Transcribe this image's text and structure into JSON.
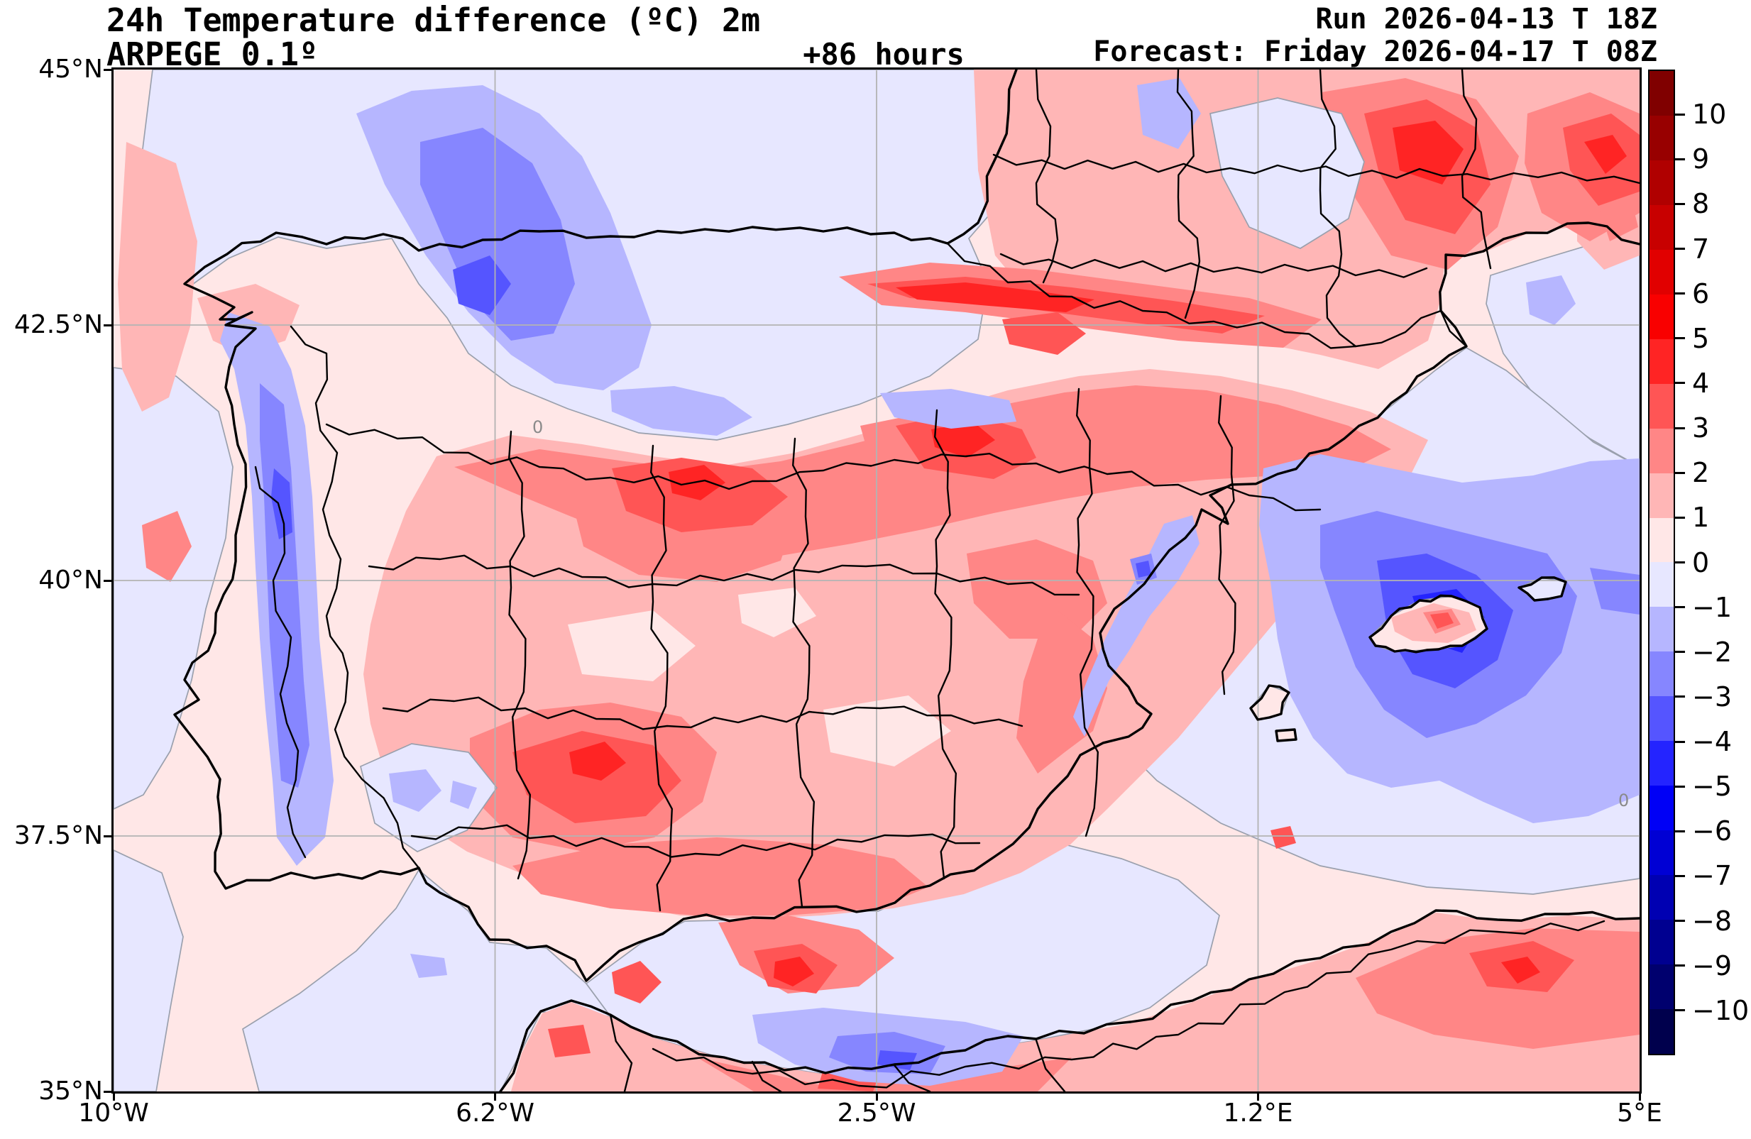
{
  "figure": {
    "title": "24h Temperature difference (ºC) 2m",
    "model": "ARPEGE 0.1º",
    "lead_time": "+86 hours",
    "run": "Run 2026-04-13 T 18Z",
    "forecast": "Forecast: Friday 2026-04-17 T 08Z"
  },
  "map": {
    "extent": {
      "lon_min": -10,
      "lon_max": 5,
      "lat_min": 35,
      "lat_max": 45
    },
    "lat_ticks": [
      {
        "label": "45°N",
        "value": 45
      },
      {
        "label": "42.5°N",
        "value": 42.5
      },
      {
        "label": "40°N",
        "value": 40
      },
      {
        "label": "37.5°N",
        "value": 37.5
      },
      {
        "label": "35°N",
        "value": 35
      }
    ],
    "lon_ticks": [
      {
        "label": "10°W",
        "value": -10
      },
      {
        "label": "6.2°W",
        "value": -6.25
      },
      {
        "label": "2.5°W",
        "value": -2.5
      },
      {
        "label": "1.2°E",
        "value": 1.25
      },
      {
        "label": "5°E",
        "value": 5
      }
    ],
    "gridline_lats": [
      42.5,
      40,
      37.5
    ],
    "gridline_lons": [
      -6.25,
      -2.5,
      1.25
    ],
    "zero_contour_label": "0"
  },
  "colorbar": {
    "tick_labels": [
      "10",
      "9",
      "8",
      "7",
      "6",
      "5",
      "4",
      "3",
      "2",
      "1",
      "0",
      "−1",
      "−2",
      "−3",
      "−4",
      "−5",
      "−6",
      "−7",
      "−8",
      "−9",
      "−10"
    ],
    "colors_top_to_bottom": [
      "#800000",
      "#980000",
      "#b00000",
      "#c80000",
      "#e10000",
      "#f90000",
      "#ff2424",
      "#ff5555",
      "#ff8686",
      "#ffb6b6",
      "#ffe7e7",
      "#e7e7ff",
      "#b6b6ff",
      "#8686ff",
      "#5555ff",
      "#2424ff",
      "#0000f6",
      "#0000d4",
      "#0000b2",
      "#000090",
      "#00006e",
      "#00004d"
    ]
  },
  "chart_data": {
    "type": "heatmap",
    "variable": "24h Temperature difference (ºC) 2m",
    "model": "ARPEGE 0.1º",
    "lead_hours": 86,
    "levels": [
      -10,
      -9,
      -8,
      -7,
      -6,
      -5,
      -4,
      -3,
      -2,
      -1,
      0,
      1,
      2,
      3,
      4,
      5,
      6,
      7,
      8,
      9,
      10
    ],
    "palette": [
      "#00004d",
      "#00006e",
      "#000090",
      "#0000b2",
      "#0000d4",
      "#0000f6",
      "#2424ff",
      "#5555ff",
      "#8686ff",
      "#b6b6ff",
      "#e7e7ff",
      "#ffe7e7",
      "#ffb6b6",
      "#ff8686",
      "#ff5555",
      "#ff2424",
      "#f90000",
      "#e10000",
      "#c80000",
      "#b00000",
      "#980000",
      "#800000"
    ],
    "extent": {
      "lon_min": -10,
      "lon_max": 5,
      "lat_min": 35,
      "lat_max": 45
    },
    "legend_position": "right",
    "grid": true
  }
}
